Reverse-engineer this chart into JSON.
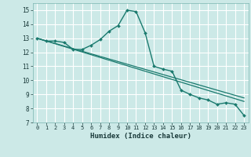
{
  "xlabel": "Humidex (Indice chaleur)",
  "bg_color": "#cce9e7",
  "grid_color": "#ffffff",
  "line_color": "#1a7a6e",
  "xlim": [
    -0.5,
    23.5
  ],
  "ylim": [
    7,
    15.5
  ],
  "xticks": [
    0,
    1,
    2,
    3,
    4,
    5,
    6,
    7,
    8,
    9,
    10,
    11,
    12,
    13,
    14,
    15,
    16,
    17,
    18,
    19,
    20,
    21,
    22,
    23
  ],
  "yticks": [
    7,
    8,
    9,
    10,
    11,
    12,
    13,
    14,
    15
  ],
  "line1_x": [
    0,
    1,
    2,
    3,
    4,
    5,
    6,
    7,
    8,
    9,
    10,
    11,
    12,
    13,
    14,
    15,
    16,
    17,
    18,
    19,
    20,
    21,
    22,
    23
  ],
  "line1_y": [
    13.0,
    12.8,
    12.8,
    12.7,
    12.2,
    12.2,
    12.5,
    12.9,
    13.5,
    13.9,
    15.0,
    14.9,
    13.4,
    11.0,
    10.8,
    10.65,
    9.3,
    9.0,
    8.75,
    8.6,
    8.3,
    8.4,
    8.3,
    7.5
  ],
  "line2_x": [
    0,
    23
  ],
  "line2_y": [
    13.0,
    8.75
  ],
  "line3_x": [
    0,
    23
  ],
  "line3_y": [
    13.0,
    8.5
  ]
}
